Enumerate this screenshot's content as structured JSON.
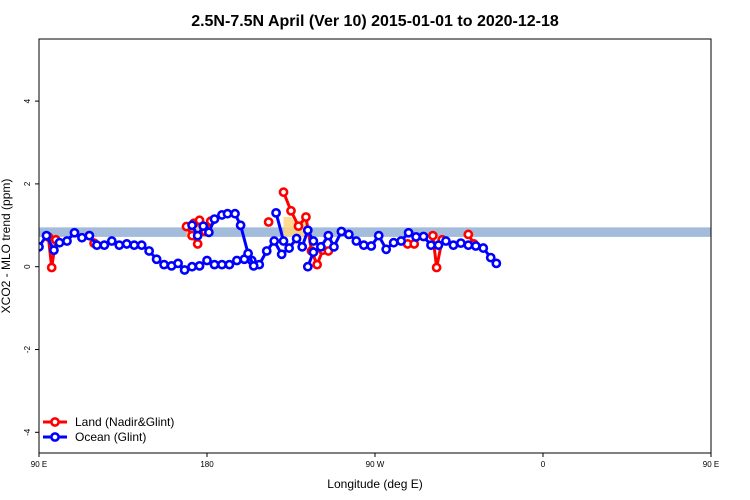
{
  "chart_data": {
    "type": "line",
    "title": "2.5N-7.5N April (Ver 10)   2015-01-01 to 2020-12-18",
    "xlabel": "Longitude (deg E)",
    "ylabel": "XCO2 - MLO trend (ppm)",
    "xlim": [
      90,
      450
    ],
    "ylim": [
      -4.5,
      5.5
    ],
    "x_ticks": [
      {
        "value": 90,
        "label": "90 E"
      },
      {
        "value": 180,
        "label": "180"
      },
      {
        "value": 270,
        "label": "90 W"
      },
      {
        "value": 360,
        "label": "0"
      },
      {
        "value": 450,
        "label": "90 E"
      },
      {
        "value": 540,
        "label": "180"
      }
    ],
    "y_ticks": [
      {
        "value": -4,
        "label": "-4"
      },
      {
        "value": -2,
        "label": "-2"
      },
      {
        "value": 0,
        "label": "0"
      },
      {
        "value": 2,
        "label": "2"
      },
      {
        "value": 4,
        "label": "4"
      }
    ],
    "reference_band": {
      "ymin": 0.72,
      "ymax": 0.95,
      "color": "#a3bcdc"
    },
    "land_fill_color": "#ffd580",
    "legend_position": "bottom-left",
    "series": [
      {
        "name": "Land (Nadir&Glint)",
        "color": "#ff0000",
        "segments": [
          [
            [
              95,
              0.72
            ],
            [
              96.8,
              -0.02
            ],
            [
              99,
              0.65
            ]
          ],
          [
            [
              117,
              0.75
            ],
            [
              119.5,
              0.57
            ]
          ],
          [
            [
              169,
              0.97
            ],
            [
              172,
              0.75
            ],
            [
              175,
              0.55
            ]
          ],
          [
            [
              173,
              1.05
            ],
            [
              176,
              1.12
            ],
            [
              179,
              0.85
            ],
            [
              182,
              1.1
            ]
          ],
          [
            [
              213,
              1.08
            ]
          ],
          [
            [
              221,
              1.8
            ],
            [
              225,
              1.35
            ],
            [
              229,
              0.98
            ],
            [
              233,
              1.2
            ],
            [
              236,
              0.38
            ],
            [
              239,
              0.05
            ],
            [
              242,
              0.4
            ],
            [
              245,
              0.38
            ]
          ],
          [
            [
              287.5,
              0.55
            ],
            [
              291,
              0.55
            ]
          ],
          [
            [
              301,
              0.75
            ],
            [
              303,
              -0.02
            ],
            [
              306,
              0.65
            ]
          ],
          [
            [
              320,
              0.78
            ],
            [
              323,
              0.55
            ]
          ]
        ]
      },
      {
        "name": "Ocean (Glint)",
        "color": "#0000ff",
        "segments": [
          [
            [
              90,
              0.48
            ],
            [
              94,
              0.75
            ],
            [
              98,
              0.4
            ],
            [
              101,
              0.58
            ],
            [
              105,
              0.62
            ],
            [
              109,
              0.82
            ],
            [
              113,
              0.7
            ],
            [
              117,
              0.75
            ],
            [
              121,
              0.52
            ],
            [
              125,
              0.52
            ],
            [
              129,
              0.62
            ],
            [
              133,
              0.52
            ],
            [
              137,
              0.55
            ],
            [
              141,
              0.52
            ],
            [
              145,
              0.52
            ],
            [
              149,
              0.38
            ],
            [
              153,
              0.18
            ],
            [
              157,
              0.05
            ],
            [
              161,
              0.02
            ],
            [
              164.5,
              0.08
            ],
            [
              168,
              -0.08
            ],
            [
              172,
              0.0
            ],
            [
              176,
              0.02
            ],
            [
              180,
              0.15
            ],
            [
              184,
              0.05
            ],
            [
              188,
              0.05
            ],
            [
              192,
              0.05
            ],
            [
              196,
              0.15
            ],
            [
              200,
              0.18
            ],
            [
              204,
              0.15
            ],
            [
              208,
              0.05
            ],
            [
              212,
              0.38
            ],
            [
              216,
              0.62
            ],
            [
              220,
              0.3
            ],
            [
              224,
              0.45
            ],
            [
              228,
              0.68
            ],
            [
              231,
              0.48
            ],
            [
              234,
              0.88
            ],
            [
              237,
              0.62
            ]
          ],
          [
            [
              172,
              1.0
            ],
            [
              175,
              0.75
            ],
            [
              178,
              0.98
            ],
            [
              181,
              0.83
            ],
            [
              184,
              1.15
            ],
            [
              188,
              1.25
            ],
            [
              191,
              1.28
            ],
            [
              195,
              1.28
            ],
            [
              198,
              1.0
            ],
            [
              202,
              0.32
            ],
            [
              205,
              0.02
            ]
          ],
          [
            [
              217,
              1.3
            ],
            [
              221,
              0.62
            ]
          ],
          [
            [
              234,
              0.0
            ],
            [
              237,
              0.35
            ],
            [
              241,
              0.48
            ],
            [
              245,
              0.75
            ],
            [
              248,
              0.48
            ],
            [
              252,
              0.85
            ],
            [
              256,
              0.78
            ],
            [
              260,
              0.62
            ],
            [
              264,
              0.52
            ],
            [
              268,
              0.5
            ],
            [
              272,
              0.75
            ],
            [
              276,
              0.42
            ],
            [
              280,
              0.58
            ],
            [
              284,
              0.62
            ],
            [
              288,
              0.82
            ],
            [
              292,
              0.72
            ],
            [
              296,
              0.73
            ],
            [
              300,
              0.52
            ],
            [
              304,
              0.52
            ],
            [
              308,
              0.62
            ],
            [
              312,
              0.52
            ],
            [
              316,
              0.57
            ],
            [
              320,
              0.52
            ],
            [
              324,
              0.5
            ],
            [
              328,
              0.45
            ],
            [
              332,
              0.22
            ],
            [
              335,
              0.08
            ]
          ]
        ]
      }
    ]
  }
}
